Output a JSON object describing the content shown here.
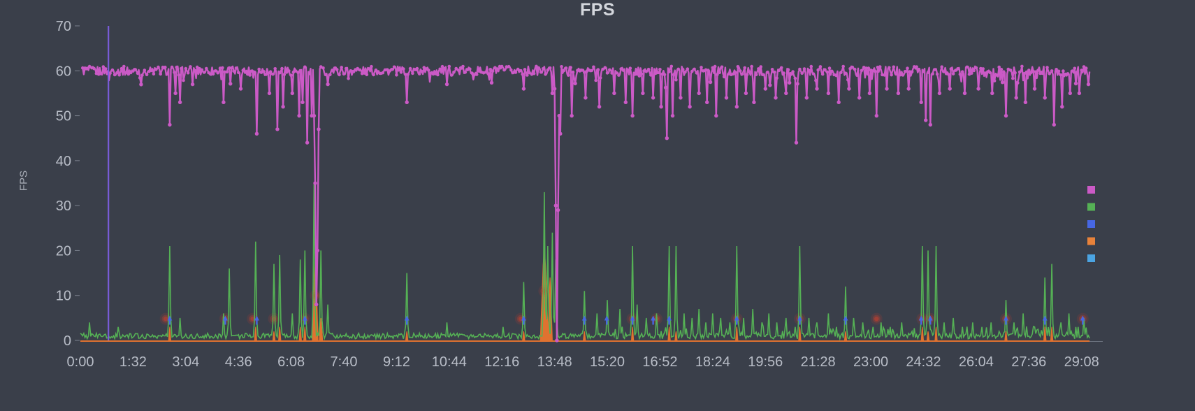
{
  "chart_data": {
    "type": "line",
    "title": "FPS",
    "xlabel": "",
    "ylabel": "FPS",
    "ylim": [
      0,
      70
    ],
    "y_ticks": [
      0,
      10,
      20,
      30,
      40,
      50,
      60,
      70
    ],
    "x_max_seconds": 1785,
    "x_ticks": {
      "times": [
        0,
        92,
        184,
        276,
        368,
        460,
        552,
        644,
        736,
        828,
        920,
        1012,
        1104,
        1196,
        1288,
        1380,
        1472,
        1564,
        1656,
        1748
      ],
      "labels": [
        "0:00",
        "1:32",
        "3:04",
        "4:36",
        "6:08",
        "7:40",
        "9:12",
        "10:44",
        "12:16",
        "13:48",
        "15:20",
        "16:52",
        "18:24",
        "19:56",
        "21:28",
        "23:00",
        "24:32",
        "26:04",
        "27:36",
        "29:08"
      ]
    },
    "grid": false,
    "legend_position": "right",
    "background": "#3a3f4a",
    "title_color": "#d3d6dc",
    "tick_text_color": "#b8bdc7",
    "tick_mark_color": "#7b818d",
    "axis_line_color": "#6d7480",
    "y_axis_label_color": "#a8adb7",
    "series": [
      {
        "id": "fps",
        "type": "line-points",
        "color": "#cb5ac6",
        "baseline": 60,
        "jitter": 2.0,
        "start_t": 4,
        "end_t": 1762,
        "sample_step": 2,
        "dips": [
          [
            156,
            48
          ],
          [
            166,
            55
          ],
          [
            174,
            53
          ],
          [
            196,
            57
          ],
          [
            250,
            53
          ],
          [
            280,
            56
          ],
          [
            308,
            46
          ],
          [
            330,
            55
          ],
          [
            344,
            47
          ],
          [
            354,
            52
          ],
          [
            370,
            55
          ],
          [
            382,
            50
          ],
          [
            388,
            53
          ],
          [
            396,
            44
          ],
          [
            404,
            50
          ],
          [
            408,
            50
          ],
          [
            410,
            35
          ],
          [
            412,
            8
          ],
          [
            414,
            20
          ],
          [
            416,
            47
          ],
          [
            432,
            57
          ],
          [
            570,
            53
          ],
          [
            640,
            57
          ],
          [
            714,
            58
          ],
          [
            774,
            56
          ],
          [
            824,
            55
          ],
          [
            828,
            56
          ],
          [
            830,
            30
          ],
          [
            832,
            0
          ],
          [
            834,
            29
          ],
          [
            836,
            50
          ],
          [
            838,
            46
          ],
          [
            858,
            50
          ],
          [
            882,
            54
          ],
          [
            906,
            52
          ],
          [
            932,
            55
          ],
          [
            952,
            53
          ],
          [
            964,
            50
          ],
          [
            982,
            55
          ],
          [
            1000,
            54
          ],
          [
            1014,
            52
          ],
          [
            1024,
            45
          ],
          [
            1034,
            50
          ],
          [
            1048,
            54
          ],
          [
            1064,
            52
          ],
          [
            1080,
            55
          ],
          [
            1094,
            53
          ],
          [
            1110,
            50
          ],
          [
            1128,
            54
          ],
          [
            1146,
            52
          ],
          [
            1162,
            55
          ],
          [
            1176,
            53
          ],
          [
            1196,
            56
          ],
          [
            1214,
            54
          ],
          [
            1232,
            55
          ],
          [
            1250,
            44
          ],
          [
            1268,
            54
          ],
          [
            1286,
            56
          ],
          [
            1306,
            55
          ],
          [
            1324,
            53
          ],
          [
            1342,
            56
          ],
          [
            1360,
            54
          ],
          [
            1378,
            55
          ],
          [
            1390,
            50
          ],
          [
            1408,
            56
          ],
          [
            1428,
            55
          ],
          [
            1446,
            56
          ],
          [
            1468,
            53
          ],
          [
            1476,
            49
          ],
          [
            1484,
            48
          ],
          [
            1500,
            55
          ],
          [
            1518,
            56
          ],
          [
            1544,
            55
          ],
          [
            1568,
            56
          ],
          [
            1592,
            55
          ],
          [
            1616,
            50
          ],
          [
            1634,
            54
          ],
          [
            1650,
            53
          ],
          [
            1666,
            56
          ],
          [
            1684,
            54
          ],
          [
            1700,
            48
          ],
          [
            1714,
            52
          ],
          [
            1728,
            55
          ],
          [
            1744,
            55
          ],
          [
            1760,
            57
          ]
        ]
      },
      {
        "id": "frame-intervals-green",
        "type": "line",
        "color": "#55b155",
        "baseline": 0.9,
        "jitter": 1.25,
        "start_t": 0,
        "end_t": 1762,
        "sample_step": 2,
        "spikes": [
          [
            16,
            4
          ],
          [
            66,
            3
          ],
          [
            156,
            21
          ],
          [
            174,
            5
          ],
          [
            250,
            6
          ],
          [
            260,
            16
          ],
          [
            306,
            22
          ],
          [
            338,
            17
          ],
          [
            348,
            19
          ],
          [
            370,
            6
          ],
          [
            384,
            18
          ],
          [
            392,
            20
          ],
          [
            408,
            35
          ],
          [
            420,
            20
          ],
          [
            432,
            8
          ],
          [
            570,
            15
          ],
          [
            640,
            4
          ],
          [
            738,
            3
          ],
          [
            774,
            13
          ],
          [
            810,
            33
          ],
          [
            816,
            21
          ],
          [
            824,
            24
          ],
          [
            830,
            18
          ],
          [
            880,
            11
          ],
          [
            902,
            6
          ],
          [
            920,
            9
          ],
          [
            942,
            7
          ],
          [
            964,
            21
          ],
          [
            972,
            8
          ],
          [
            988,
            5
          ],
          [
            1006,
            6
          ],
          [
            1028,
            21
          ],
          [
            1040,
            21
          ],
          [
            1054,
            6
          ],
          [
            1068,
            5
          ],
          [
            1080,
            7
          ],
          [
            1092,
            4
          ],
          [
            1104,
            6
          ],
          [
            1118,
            5
          ],
          [
            1134,
            4
          ],
          [
            1146,
            21
          ],
          [
            1158,
            5
          ],
          [
            1174,
            7
          ],
          [
            1190,
            4
          ],
          [
            1202,
            6
          ],
          [
            1216,
            4
          ],
          [
            1232,
            5
          ],
          [
            1248,
            3
          ],
          [
            1256,
            21
          ],
          [
            1272,
            5
          ],
          [
            1286,
            4
          ],
          [
            1306,
            6
          ],
          [
            1320,
            3
          ],
          [
            1336,
            12
          ],
          [
            1350,
            5
          ],
          [
            1366,
            4
          ],
          [
            1384,
            3
          ],
          [
            1398,
            4
          ],
          [
            1414,
            3
          ],
          [
            1434,
            4
          ],
          [
            1452,
            2
          ],
          [
            1470,
            21
          ],
          [
            1480,
            20
          ],
          [
            1494,
            21
          ],
          [
            1508,
            4
          ],
          [
            1524,
            5
          ],
          [
            1540,
            3
          ],
          [
            1558,
            4
          ],
          [
            1574,
            3
          ],
          [
            1590,
            4
          ],
          [
            1604,
            2
          ],
          [
            1616,
            9
          ],
          [
            1630,
            4
          ],
          [
            1646,
            6
          ],
          [
            1666,
            3
          ],
          [
            1684,
            14
          ],
          [
            1696,
            17
          ],
          [
            1712,
            4
          ],
          [
            1726,
            6
          ],
          [
            1742,
            3
          ],
          [
            1752,
            5
          ],
          [
            1762,
            3
          ]
        ]
      },
      {
        "id": "stutter-orange",
        "type": "area-spikes",
        "color": "#e07230",
        "baseline_line": true,
        "spikes": [
          [
            156,
            3,
            2
          ],
          [
            306,
            3,
            2
          ],
          [
            338,
            2,
            2
          ],
          [
            348,
            3,
            2
          ],
          [
            384,
            3,
            2
          ],
          [
            392,
            3,
            2
          ],
          [
            410,
            20,
            5
          ],
          [
            420,
            5,
            3
          ],
          [
            570,
            2,
            2
          ],
          [
            774,
            2,
            2
          ],
          [
            810,
            21,
            7
          ],
          [
            820,
            14,
            4
          ],
          [
            880,
            2,
            2
          ],
          [
            964,
            3,
            2
          ],
          [
            1028,
            3,
            2
          ],
          [
            1040,
            2,
            2
          ],
          [
            1146,
            3,
            2
          ],
          [
            1256,
            3,
            2
          ],
          [
            1336,
            2,
            2
          ],
          [
            1470,
            3,
            2
          ],
          [
            1480,
            2,
            2
          ],
          [
            1494,
            3,
            2
          ],
          [
            1616,
            2,
            2
          ],
          [
            1684,
            3,
            2
          ],
          [
            1696,
            3,
            2
          ]
        ]
      },
      {
        "id": "event-purple",
        "type": "vline",
        "color": "#7d5de0",
        "t": 49,
        "v_from": 0,
        "v_to": 70
      },
      {
        "id": "marker-blue",
        "type": "arrow-markers",
        "color": "#4767e3",
        "v": 4.9,
        "times": [
          156,
          253,
          308,
          392,
          570,
          774,
          880,
          919,
          964,
          1000,
          1028,
          1146,
          1256,
          1336,
          1468,
          1484,
          1616,
          1684,
          1750
        ]
      },
      {
        "id": "marker-red",
        "type": "glow-markers",
        "color": "#c2402f",
        "points": [
          [
            149,
            4.8
          ],
          [
            253,
            4.8
          ],
          [
            301,
            4.8
          ],
          [
            338,
            4.8
          ],
          [
            392,
            4.8
          ],
          [
            411,
            10
          ],
          [
            769,
            4.8
          ],
          [
            810,
            11
          ],
          [
            964,
            4.8
          ],
          [
            1006,
            4.8
          ],
          [
            1146,
            4.8
          ],
          [
            1256,
            4.8
          ],
          [
            1390,
            4.8
          ],
          [
            1470,
            4.8
          ],
          [
            1484,
            4.8
          ],
          [
            1616,
            4.8
          ],
          [
            1750,
            4.8
          ]
        ]
      }
    ],
    "legend": {
      "swatches": [
        {
          "id": "fps",
          "color": "#cb5ac6"
        },
        {
          "id": "green-series",
          "color": "#55b155"
        },
        {
          "id": "blue-series",
          "color": "#4767e3"
        },
        {
          "id": "orange-series",
          "color": "#e8823a"
        },
        {
          "id": "lightblue-series",
          "color": "#4ba4e2"
        }
      ]
    }
  }
}
